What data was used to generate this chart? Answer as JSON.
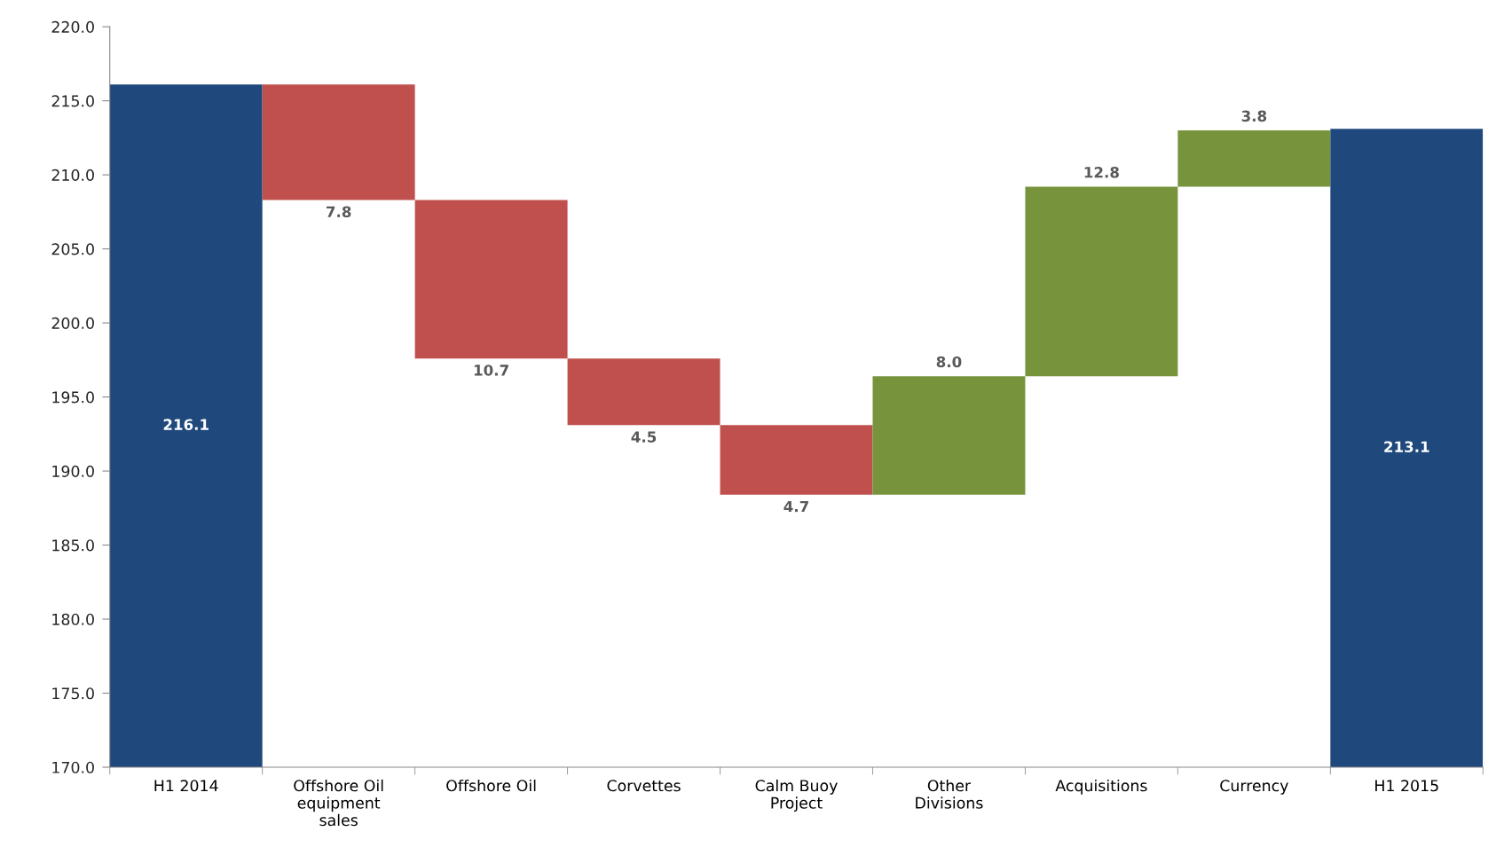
{
  "chart_data": {
    "type": "bar",
    "categories": [
      "H1 2014",
      "Offshore Oil equipment sales",
      "Offshore Oil",
      "Corvettes",
      "Calm Buoy Project",
      "Other Divisions",
      "Acquisitions",
      "Currency",
      "H1 2015"
    ],
    "values": [
      46.1,
      -7.8,
      -10.7,
      -4.5,
      -4.7,
      8.0,
      12.8,
      3.8,
      43.1
    ],
    "base": [
      170.0,
      216.1,
      208.3,
      197.6,
      193.1,
      188.4,
      196.4,
      209.2,
      170.0
    ],
    "colors": [
      "#1f497d",
      "#c0504d",
      "#c0504d",
      "#c0504d",
      "#c0504d",
      "#77933c",
      "#77933c",
      "#77933c",
      "#1f497d"
    ],
    "value_labels": [
      "216.1",
      "7.8",
      "10.7",
      "4.5",
      "4.7",
      "8.0",
      "12.8",
      "3.8",
      "213.1"
    ],
    "ylim": [
      170.0,
      220.0
    ],
    "yticks": [
      {
        "value": 170,
        "label": "170.0"
      },
      {
        "value": 175,
        "label": "175.0"
      },
      {
        "value": 180,
        "label": "180.0"
      },
      {
        "value": 185,
        "label": "185.0"
      },
      {
        "value": 190,
        "label": "190.0"
      },
      {
        "value": 195,
        "label": "195.0"
      },
      {
        "value": 200,
        "label": "200.0"
      },
      {
        "value": 205,
        "label": "205.0"
      },
      {
        "value": 210,
        "label": "210.0"
      },
      {
        "value": 215,
        "label": "215.0"
      },
      {
        "value": 220,
        "label": "220.0"
      }
    ],
    "grid": false,
    "legend": false
  }
}
